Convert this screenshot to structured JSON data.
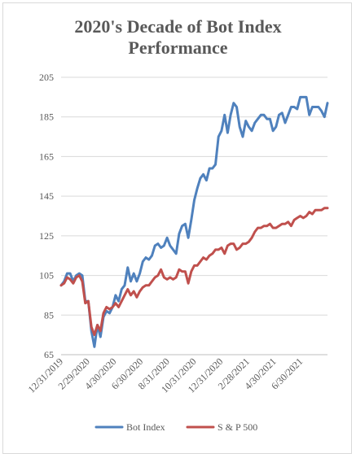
{
  "chart_data": {
    "type": "line",
    "title": "2020's Decade of Bot Index Performance",
    "xlabel": "",
    "ylabel": "",
    "ylim": [
      65,
      205
    ],
    "yticks": [
      65,
      85,
      105,
      125,
      145,
      165,
      185,
      205
    ],
    "xticks": [
      "12/31/2019",
      "2/29/2020",
      "4/30/2020",
      "6/30/2020",
      "8/31/2020",
      "10/31/2020",
      "12/31/2020",
      "2/28/2021",
      "4/30/2021",
      "6/30/2021"
    ],
    "grid": true,
    "legend": "bottom",
    "series": [
      {
        "name": "Bot Index",
        "color": "#4f81bd",
        "values": [
          100,
          102,
          106,
          106,
          102,
          105,
          106,
          105,
          92,
          92,
          77,
          69,
          80,
          74,
          84,
          87,
          86,
          89,
          95,
          92,
          98,
          100,
          109,
          102,
          106,
          102,
          106,
          112,
          114,
          113,
          115,
          120,
          121,
          119,
          120,
          124,
          120,
          118,
          116,
          126,
          130,
          131,
          124,
          133,
          143,
          149,
          154,
          156,
          153,
          159,
          159,
          161,
          175,
          178,
          186,
          177,
          186,
          192,
          190,
          180,
          175,
          183,
          180,
          178,
          182,
          184,
          186,
          186,
          184,
          184,
          178,
          180,
          186,
          187,
          182,
          186,
          190,
          190,
          189,
          195,
          195,
          195,
          186,
          190,
          190,
          190,
          188,
          185,
          192
        ]
      },
      {
        "name": "S & P 500",
        "color": "#c0504d",
        "values": [
          100,
          101,
          104,
          103,
          101,
          104,
          105,
          102,
          91,
          92,
          79,
          75,
          80,
          77,
          86,
          89,
          88,
          89,
          91,
          89,
          92,
          95,
          98,
          95,
          97,
          94,
          97,
          99,
          100,
          100,
          102,
          104,
          105,
          108,
          104,
          103,
          104,
          103,
          104,
          108,
          107,
          107,
          101,
          107,
          110,
          110,
          112,
          114,
          113,
          115,
          116,
          118,
          118,
          119,
          116,
          120,
          121,
          121,
          118,
          119,
          121,
          121,
          122,
          124,
          127,
          129,
          129,
          130,
          130,
          131,
          129,
          129,
          130,
          131,
          131,
          132,
          130,
          133,
          134,
          135,
          134,
          135,
          137,
          136,
          138,
          138,
          138,
          139,
          139
        ]
      }
    ]
  }
}
